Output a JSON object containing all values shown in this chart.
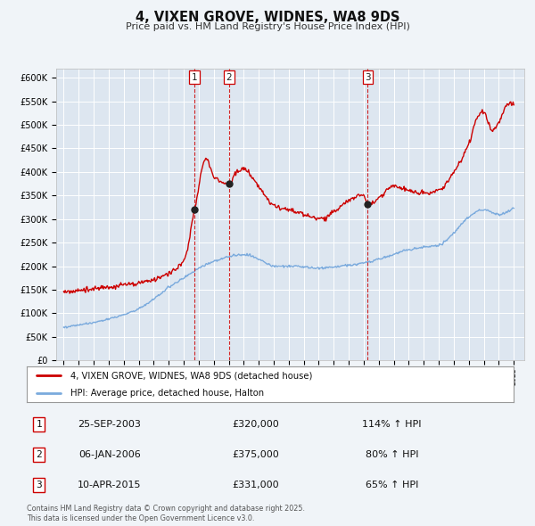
{
  "title": "4, VIXEN GROVE, WIDNES, WA8 9DS",
  "subtitle": "Price paid vs. HM Land Registry's House Price Index (HPI)",
  "background_color": "#f0f4f8",
  "plot_bg_color": "#dde6f0",
  "grid_color": "#ffffff",
  "red_line_color": "#cc0000",
  "blue_line_color": "#7aaadd",
  "sale_marker_color": "#222222",
  "vline_color": "#cc0000",
  "sale1": {
    "date_num": 2003.73,
    "price": 320000,
    "label": "1",
    "date_str": "25-SEP-2003",
    "price_str": "£320,000",
    "pct": "114% ↑ HPI"
  },
  "sale2": {
    "date_num": 2006.02,
    "price": 375000,
    "label": "2",
    "date_str": "06-JAN-2006",
    "price_str": "£375,000",
    "pct": "80% ↑ HPI"
  },
  "sale3": {
    "date_num": 2015.27,
    "price": 331000,
    "label": "3",
    "date_str": "10-APR-2015",
    "price_str": "£331,000",
    "pct": "65% ↑ HPI"
  },
  "ylim": [
    0,
    620000
  ],
  "xlim_start": 1994.5,
  "xlim_end": 2025.7,
  "legend_label_red": "4, VIXEN GROVE, WIDNES, WA8 9DS (detached house)",
  "legend_label_blue": "HPI: Average price, detached house, Halton",
  "footer": "Contains HM Land Registry data © Crown copyright and database right 2025.\nThis data is licensed under the Open Government Licence v3.0."
}
